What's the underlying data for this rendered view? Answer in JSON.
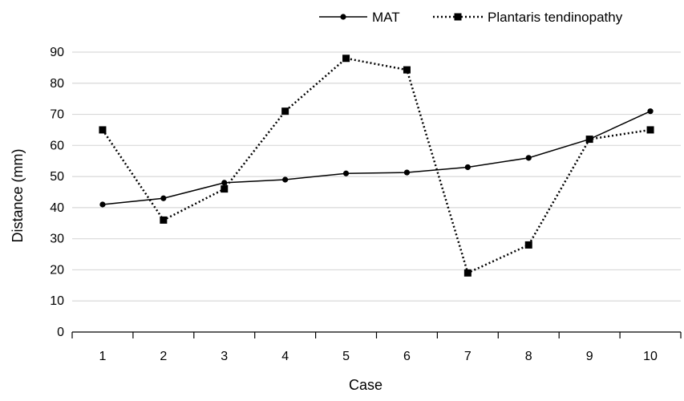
{
  "chart_data": {
    "type": "line",
    "xlabel": "Case",
    "ylabel": "Distance (mm)",
    "categories": [
      "1",
      "2",
      "3",
      "4",
      "5",
      "6",
      "7",
      "8",
      "9",
      "10"
    ],
    "ylim": [
      0,
      90
    ],
    "yticks": [
      "0",
      "10",
      "20",
      "30",
      "40",
      "50",
      "60",
      "70",
      "80",
      "90"
    ],
    "grid": "horizontal",
    "legend_position": "top-right",
    "series": [
      {
        "name": "MAT",
        "style": "solid",
        "marker": "circle",
        "color": "#000000",
        "values": [
          41,
          43,
          48,
          49,
          51,
          51.3,
          53,
          56,
          62,
          71
        ]
      },
      {
        "name": "Plantaris tendinopathy",
        "style": "dotted",
        "marker": "square",
        "color": "#000000",
        "values": [
          65,
          36,
          46,
          71,
          88,
          84.3,
          19,
          28,
          62,
          65
        ]
      }
    ]
  }
}
